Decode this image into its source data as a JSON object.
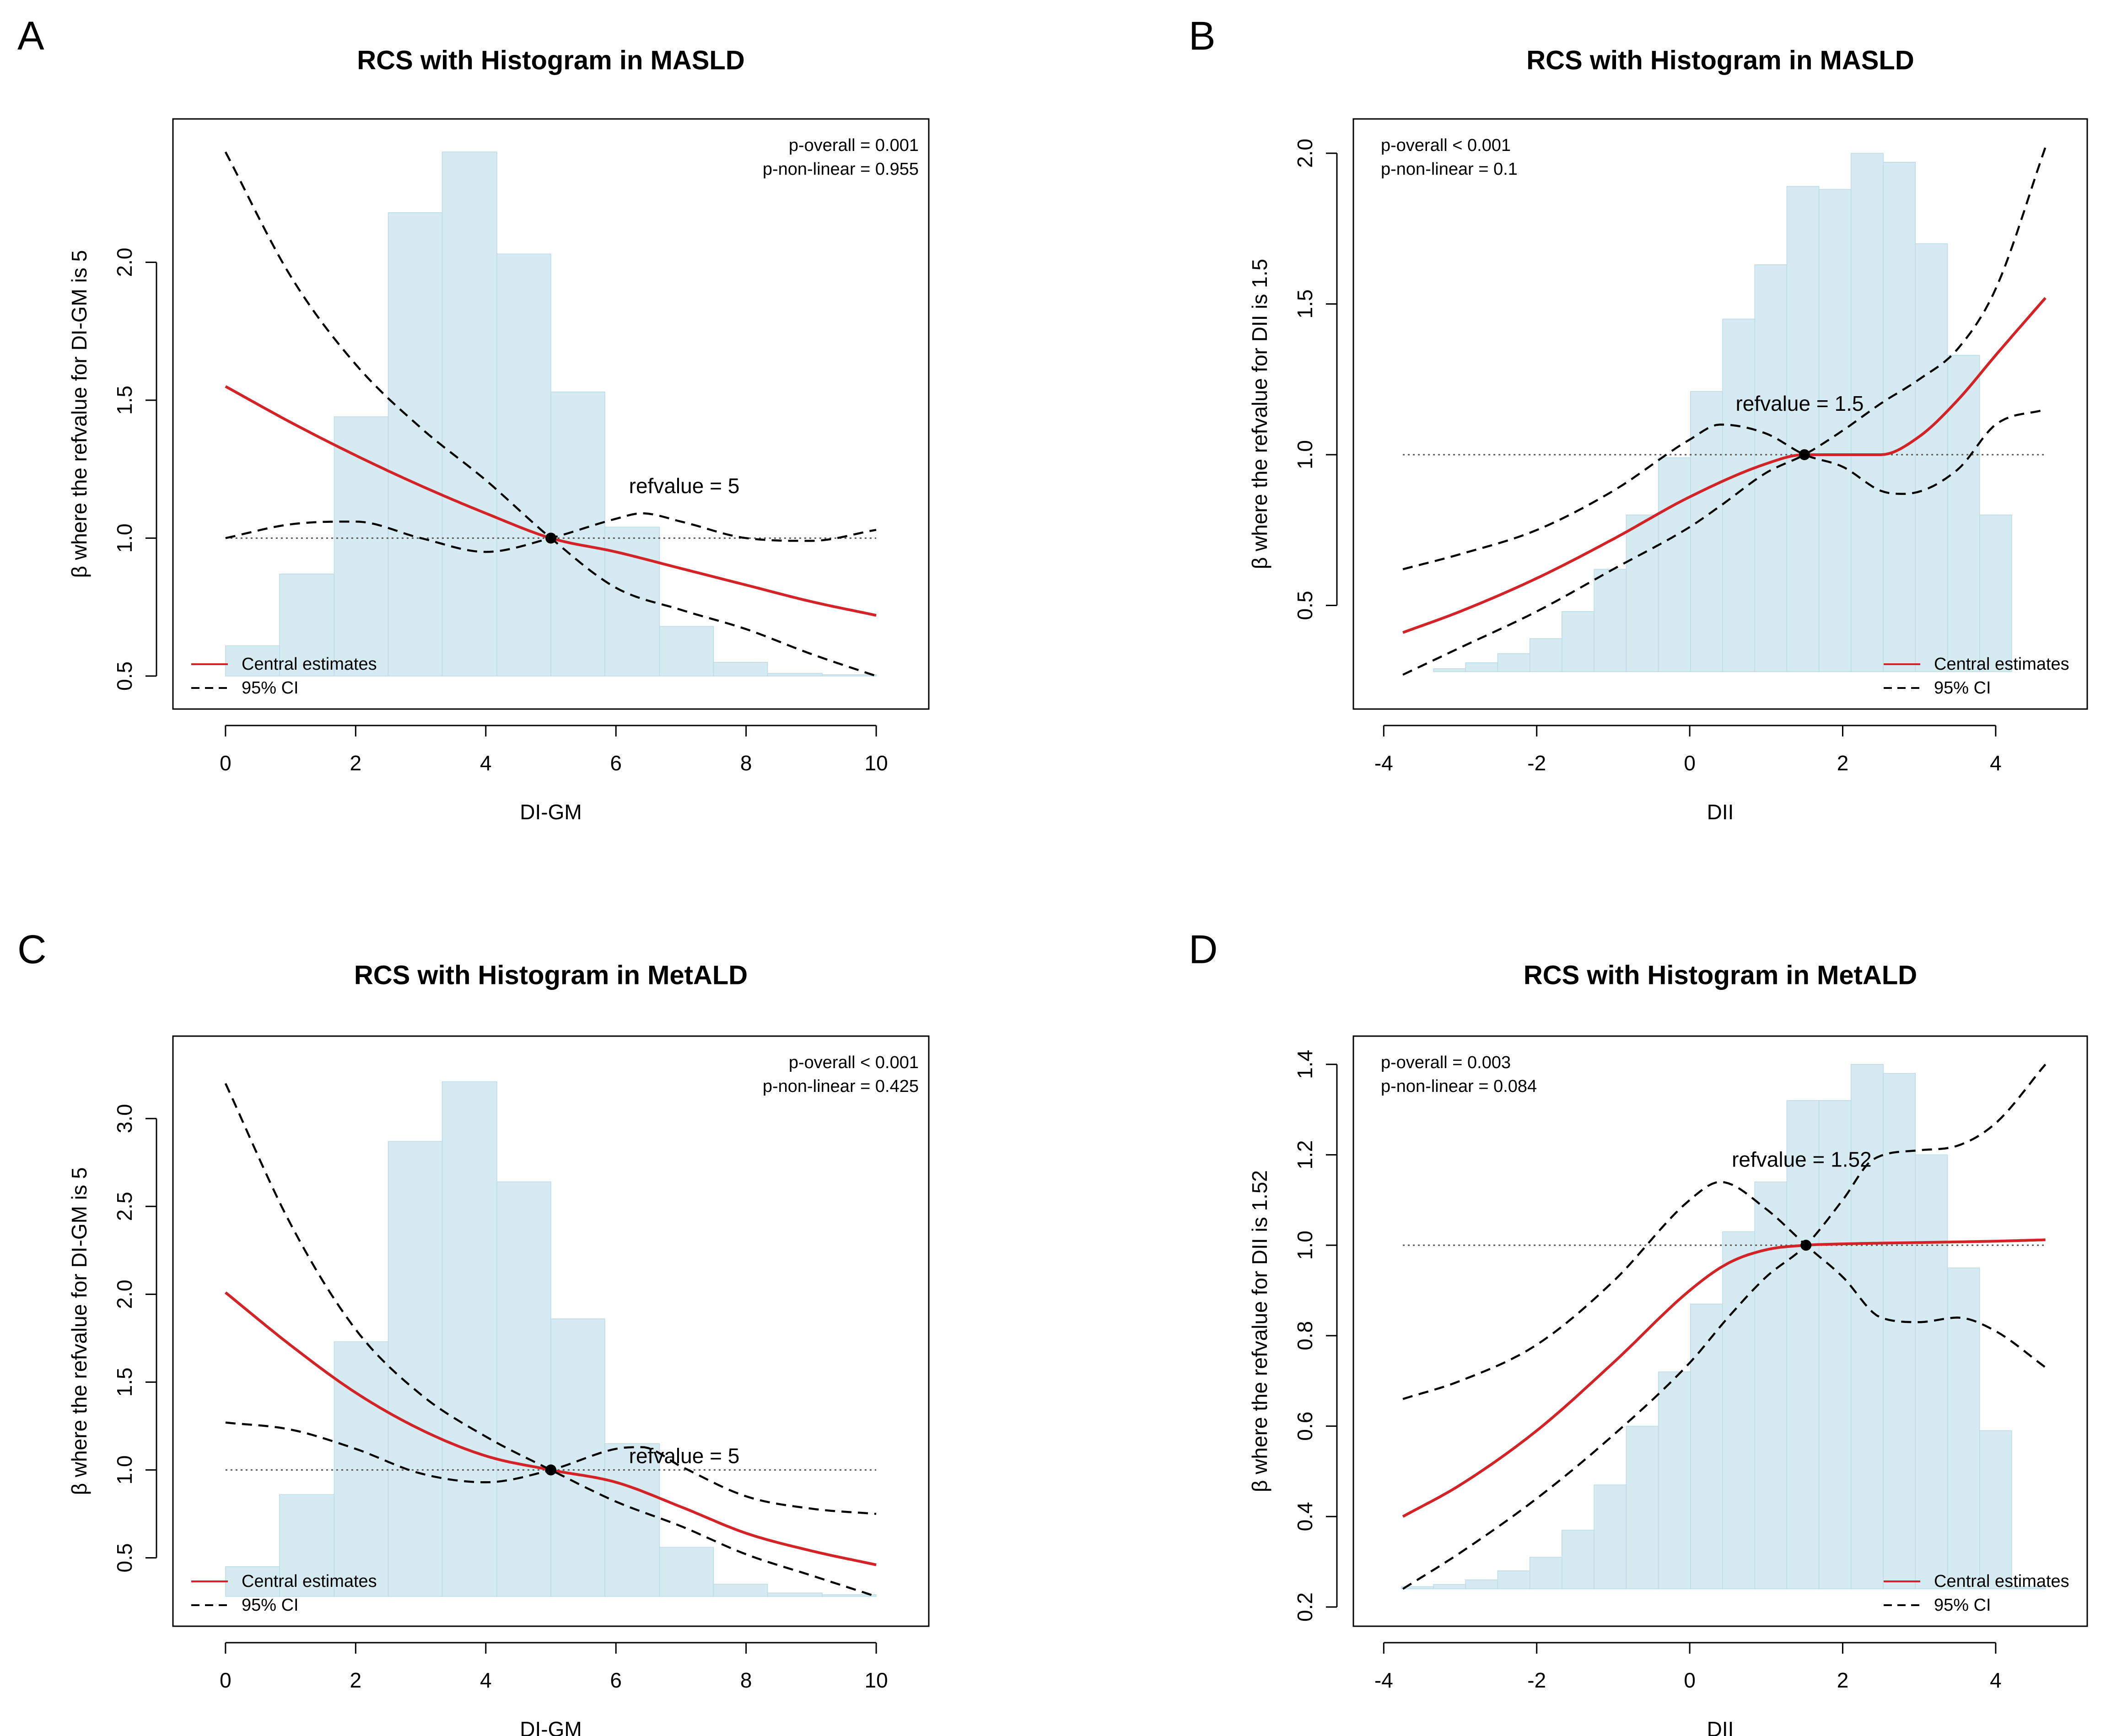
{
  "figure": {
    "background": "#ffffff"
  },
  "colors": {
    "histogram": "#d6eaf1",
    "histogram_edge": "#bcdbe6",
    "central": "#d42326",
    "ci": "#000000",
    "refline": "#555555",
    "axis": "#000000"
  },
  "chart_data": [
    {
      "id": "A",
      "panel_label": "A",
      "type": "line",
      "title": "RCS with Histogram in MASLD",
      "xlabel": "DI-GM",
      "ylabel": "β where the refvalue for DI-GM is 5",
      "xlim": [
        -0.4,
        10.4
      ],
      "ylim": [
        0.45,
        2.45
      ],
      "xticks": [
        0,
        2,
        4,
        6,
        8,
        10
      ],
      "yticks": [
        0.5,
        1.0,
        1.5,
        2.0
      ],
      "xtick_labels": [
        "0",
        "2",
        "4",
        "6",
        "8",
        "10"
      ],
      "ytick_labels": [
        "0.5",
        "1.0",
        "1.5",
        "2.0"
      ],
      "refvalue": 5,
      "ref_y": 1.0,
      "refvalue_label": "refvalue = 5",
      "refvalue_label_pos": [
        6.2,
        1.19
      ],
      "p_overall": "p-overall = 0.001",
      "p_nonlinear": "p-non-linear = 0.955",
      "legend": {
        "placement": "bottom-left",
        "central": "Central estimates",
        "ci": "95% CI"
      },
      "histogram": {
        "baseline": 0.5,
        "edges": [
          0,
          0.83,
          1.67,
          2.5,
          3.33,
          4.17,
          5.0,
          5.83,
          6.67,
          7.5,
          8.33,
          9.17,
          10.0
        ],
        "heights": [
          0.61,
          0.87,
          1.44,
          2.18,
          2.4,
          2.03,
          1.53,
          1.04,
          0.68,
          0.55,
          0.51,
          0.505
        ]
      },
      "series": [
        {
          "name": "Central estimates",
          "style": "solid",
          "x": [
            0,
            1,
            2,
            3,
            4,
            5,
            6,
            7,
            8,
            9,
            10
          ],
          "y": [
            1.55,
            1.42,
            1.3,
            1.19,
            1.09,
            1.0,
            0.95,
            0.89,
            0.83,
            0.77,
            0.72
          ]
        },
        {
          "name": "95% CI upper",
          "style": "dashed",
          "x": [
            0,
            1,
            2,
            3,
            4,
            5,
            6,
            7,
            8,
            9,
            10
          ],
          "y": [
            2.4,
            1.95,
            1.63,
            1.4,
            1.21,
            1.0,
            0.82,
            0.74,
            0.67,
            0.58,
            0.5
          ]
        },
        {
          "name": "95% CI lower",
          "style": "dashed",
          "x": [
            0,
            1,
            2,
            3,
            4,
            5,
            6,
            6.4,
            7,
            8,
            9,
            10
          ],
          "y": [
            1.0,
            1.05,
            1.06,
            1.0,
            0.95,
            1.0,
            1.07,
            1.09,
            1.06,
            1.0,
            0.99,
            1.03
          ]
        }
      ]
    },
    {
      "id": "B",
      "panel_label": "B",
      "type": "line",
      "title": "RCS with Histogram in MASLD",
      "xlabel": "DII",
      "ylabel": "β where the refvalue for DII is 1.5",
      "xlim": [
        -4.05,
        4.85
      ],
      "ylim": [
        0.22,
        2.05
      ],
      "xticks": [
        -4,
        -2,
        0,
        2,
        4
      ],
      "yticks": [
        0.5,
        1.0,
        1.5,
        2.0
      ],
      "xtick_labels": [
        "-4",
        "-2",
        "0",
        "2",
        "4"
      ],
      "ytick_labels": [
        "0.5",
        "1.0",
        "1.5",
        "2.0"
      ],
      "refvalue": 1.5,
      "ref_y": 1.0,
      "refvalue_label": "refvalue = 1.5",
      "refvalue_label_pos": [
        0.6,
        1.17
      ],
      "p_overall": "p-overall < 0.001",
      "p_nonlinear": "p-non-linear = 0.1",
      "legend": {
        "placement": "bottom-right",
        "central": "Central estimates",
        "ci": "95% CI"
      },
      "histogram": {
        "baseline": 0.28,
        "edges": [
          -3.77,
          -3.35,
          -2.93,
          -2.51,
          -2.09,
          -1.67,
          -1.25,
          -0.83,
          -0.41,
          0.01,
          0.43,
          0.85,
          1.27,
          1.69,
          2.11,
          2.53,
          2.95,
          3.37,
          3.79,
          4.21,
          4.65
        ],
        "heights": [
          0.28,
          0.29,
          0.31,
          0.34,
          0.39,
          0.48,
          0.62,
          0.8,
          0.99,
          1.21,
          1.45,
          1.63,
          1.89,
          1.88,
          2.0,
          1.97,
          1.7,
          1.33,
          0.8,
          0.28
        ]
      },
      "series": [
        {
          "name": "Central estimates",
          "style": "solid",
          "x": [
            -3.75,
            -3,
            -2,
            -1,
            0,
            1,
            1.5,
            2,
            2.5,
            3,
            3.5,
            4,
            4.65
          ],
          "y": [
            0.41,
            0.48,
            0.59,
            0.72,
            0.86,
            0.97,
            1.0,
            1.0,
            1.0,
            1.06,
            1.18,
            1.33,
            1.52
          ]
        },
        {
          "name": "95% CI upper",
          "style": "dashed",
          "x": [
            -3.75,
            -3,
            -2,
            -1,
            0,
            0.4,
            1,
            1.5,
            2,
            2.5,
            3,
            3.5,
            4,
            4.65
          ],
          "y": [
            0.27,
            0.36,
            0.48,
            0.62,
            0.76,
            0.83,
            0.94,
            1.0,
            1.08,
            1.17,
            1.25,
            1.35,
            1.55,
            2.02
          ]
        },
        {
          "name": "95% CI lower",
          "style": "dashed",
          "x": [
            -3.75,
            -3,
            -2,
            -1,
            0,
            0.4,
            1,
            1.5,
            2,
            2.5,
            2.8,
            3.5,
            4,
            4.65
          ],
          "y": [
            0.62,
            0.67,
            0.75,
            0.88,
            1.05,
            1.1,
            1.07,
            1.0,
            0.96,
            0.88,
            0.87,
            0.95,
            1.1,
            1.15
          ]
        }
      ]
    },
    {
      "id": "C",
      "panel_label": "C",
      "type": "line",
      "title": "RCS with Histogram in MetALD",
      "xlabel": "DI-GM",
      "ylabel": "β where the refvalue for DI-GM is 5",
      "xlim": [
        -0.4,
        10.4
      ],
      "ylim": [
        0.22,
        3.36
      ],
      "xticks": [
        0,
        2,
        4,
        6,
        8,
        10
      ],
      "yticks": [
        0.5,
        1.0,
        1.5,
        2.0,
        2.5,
        3.0
      ],
      "xtick_labels": [
        "0",
        "2",
        "4",
        "6",
        "8",
        "10"
      ],
      "ytick_labels": [
        "0.5",
        "1.0",
        "1.5",
        "2.0",
        "2.5",
        "3.0"
      ],
      "refvalue": 5,
      "ref_y": 1.0,
      "refvalue_label": "refvalue = 5",
      "refvalue_label_pos": [
        6.2,
        1.08
      ],
      "p_overall": "p-overall  < 0.001",
      "p_nonlinear": "p-non-linear = 0.425",
      "legend": {
        "placement": "bottom-left",
        "central": "Central estimates",
        "ci": "95% CI"
      },
      "histogram": {
        "baseline": 0.28,
        "edges": [
          0,
          0.83,
          1.67,
          2.5,
          3.33,
          4.17,
          5.0,
          5.83,
          6.67,
          7.5,
          8.33,
          9.17,
          10.0
        ],
        "heights": [
          0.45,
          0.86,
          1.73,
          2.87,
          3.21,
          2.64,
          1.86,
          1.15,
          0.56,
          0.35,
          0.3,
          0.29
        ]
      },
      "series": [
        {
          "name": "Central estimates",
          "style": "solid",
          "x": [
            0,
            1,
            2,
            3,
            4,
            5,
            6,
            7,
            8,
            9,
            10
          ],
          "y": [
            2.01,
            1.71,
            1.44,
            1.23,
            1.08,
            1.0,
            0.93,
            0.79,
            0.64,
            0.54,
            0.46
          ]
        },
        {
          "name": "95% CI upper",
          "style": "dashed",
          "x": [
            0,
            1,
            2,
            3,
            4,
            5,
            6,
            7,
            8,
            9,
            10
          ],
          "y": [
            3.2,
            2.4,
            1.8,
            1.43,
            1.19,
            1.0,
            0.82,
            0.68,
            0.52,
            0.4,
            0.28
          ]
        },
        {
          "name": "95% CI lower",
          "style": "dashed",
          "x": [
            0,
            1,
            2,
            3,
            4,
            5,
            6,
            6.4,
            7,
            8,
            9,
            10
          ],
          "y": [
            1.27,
            1.23,
            1.12,
            0.98,
            0.93,
            1.0,
            1.12,
            1.13,
            1.02,
            0.85,
            0.78,
            0.75
          ]
        }
      ]
    },
    {
      "id": "D",
      "panel_label": "D",
      "type": "line",
      "title": "RCS with Histogram in MetALD",
      "xlabel": "DII",
      "ylabel": "β where the refvalue for DII is 1.52",
      "xlim": [
        -4.05,
        4.85
      ],
      "ylim": [
        0.2,
        1.42
      ],
      "xticks": [
        -4,
        -2,
        0,
        2,
        4
      ],
      "yticks": [
        0.2,
        0.4,
        0.6,
        0.8,
        1.0,
        1.2,
        1.4
      ],
      "xtick_labels": [
        "-4",
        "-2",
        "0",
        "2",
        "4"
      ],
      "ytick_labels": [
        "0.2",
        "0.4",
        "0.6",
        "0.8",
        "1.0",
        "1.2",
        "1.4"
      ],
      "refvalue": 1.52,
      "ref_y": 1.0,
      "refvalue_label": "refvalue = 1.52",
      "refvalue_label_pos": [
        0.55,
        1.19
      ],
      "p_overall": "p-overall = 0.003",
      "p_nonlinear": "p-non-linear = 0.084",
      "legend": {
        "placement": "bottom-right",
        "central": "Central estimates",
        "ci": "95% CI"
      },
      "histogram": {
        "baseline": 0.24,
        "edges": [
          -3.77,
          -3.35,
          -2.93,
          -2.51,
          -2.09,
          -1.67,
          -1.25,
          -0.83,
          -0.41,
          0.01,
          0.43,
          0.85,
          1.27,
          1.69,
          2.11,
          2.53,
          2.95,
          3.37,
          3.79,
          4.21,
          4.65
        ],
        "heights": [
          0.245,
          0.25,
          0.26,
          0.28,
          0.31,
          0.37,
          0.47,
          0.6,
          0.72,
          0.87,
          1.03,
          1.14,
          1.32,
          1.32,
          1.4,
          1.38,
          1.2,
          0.95,
          0.59,
          0.245
        ]
      },
      "series": [
        {
          "name": "Central estimates",
          "style": "solid",
          "x": [
            -3.75,
            -3,
            -2,
            -1,
            0,
            0.5,
            1,
            1.52,
            2,
            3,
            4,
            4.65
          ],
          "y": [
            0.4,
            0.47,
            0.59,
            0.74,
            0.9,
            0.96,
            0.99,
            1.0,
            1.003,
            1.006,
            1.009,
            1.012
          ]
        },
        {
          "name": "95% CI upper",
          "style": "dashed",
          "x": [
            -3.75,
            -3,
            -2,
            -1,
            0,
            0.5,
            1,
            1.52,
            2,
            2.4,
            3,
            3.5,
            4,
            4.65
          ],
          "y": [
            0.24,
            0.32,
            0.44,
            0.58,
            0.74,
            0.84,
            0.93,
            1.0,
            1.1,
            1.19,
            1.21,
            1.22,
            1.27,
            1.4
          ]
        },
        {
          "name": "95% CI lower",
          "style": "dashed",
          "x": [
            -3.75,
            -3,
            -2,
            -1,
            0,
            0.4,
            1,
            1.52,
            2,
            2.5,
            3,
            3.5,
            4,
            4.65
          ],
          "y": [
            0.66,
            0.7,
            0.78,
            0.92,
            1.1,
            1.14,
            1.08,
            1.0,
            0.93,
            0.84,
            0.83,
            0.84,
            0.81,
            0.73
          ]
        }
      ]
    }
  ]
}
